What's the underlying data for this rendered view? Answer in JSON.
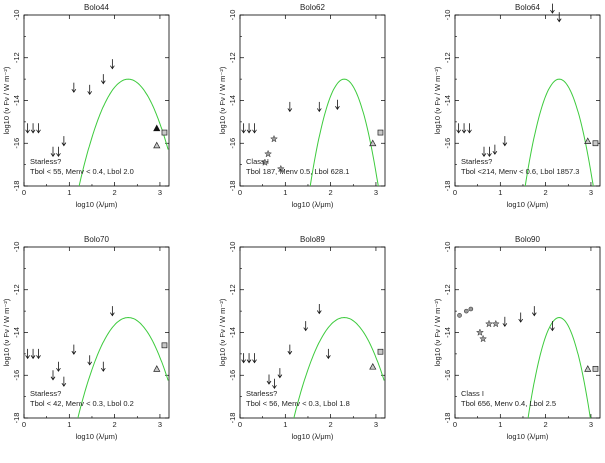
{
  "chart_data": [
    {
      "type": "scatter",
      "title": "Bolo44",
      "xlabel": "log10 (λ/μm)",
      "ylabel": "log10 (ν Fν / W m⁻²)",
      "xlim": [
        0,
        3.2
      ],
      "ylim": [
        -18,
        -10
      ],
      "xticks": [
        "0",
        "1",
        "2",
        "3"
      ],
      "yticks": [
        "-10",
        "-12",
        "-14",
        "-16",
        "-18"
      ],
      "upper_limits": [
        [
          0.08,
          -15.3
        ],
        [
          0.2,
          -15.3
        ],
        [
          0.32,
          -15.3
        ],
        [
          0.64,
          -16.4
        ],
        [
          0.76,
          -16.4
        ],
        [
          0.88,
          -15.9
        ],
        [
          1.1,
          -13.4
        ],
        [
          1.45,
          -13.5
        ],
        [
          1.95,
          -12.3
        ],
        [
          1.75,
          -13.0
        ]
      ],
      "triangles": [
        [
          2.93,
          -16.1
        ]
      ],
      "filled_triangles": [
        [
          2.93,
          -15.3
        ]
      ],
      "squares": [
        [
          3.1,
          -15.5
        ]
      ],
      "stars": [],
      "circles": [],
      "curve": {
        "peak_x": 2.3,
        "peak_y": -13.0,
        "sigma": 0.52
      },
      "annotation_lines": [
        "Starless?",
        "Tbol < 55, Menv < 0.4, Lbol 2.0"
      ]
    },
    {
      "type": "scatter",
      "title": "Bolo62",
      "xlabel": "log10 (λ/μm)",
      "ylabel": "log10 (ν Fν / W m⁻²)",
      "xlim": [
        0,
        3.2
      ],
      "ylim": [
        -18,
        -10
      ],
      "xticks": [
        "0",
        "1",
        "2",
        "3"
      ],
      "yticks": [
        "-10",
        "-12",
        "-14",
        "-16",
        "-18"
      ],
      "upper_limits": [
        [
          0.08,
          -15.3
        ],
        [
          0.2,
          -15.3
        ],
        [
          0.32,
          -15.3
        ],
        [
          1.1,
          -14.3
        ],
        [
          1.75,
          -14.3
        ],
        [
          2.15,
          -14.2
        ]
      ],
      "triangles": [
        [
          2.93,
          -16.0
        ]
      ],
      "filled_triangles": [],
      "squares": [
        [
          3.1,
          -15.5
        ]
      ],
      "stars": [
        [
          0.55,
          -16.9
        ],
        [
          0.62,
          -16.5
        ],
        [
          0.75,
          -15.8
        ],
        [
          0.9,
          -17.2
        ]
      ],
      "circles": [],
      "curve": {
        "peak_x": 2.3,
        "peak_y": -13.0,
        "sigma": 0.36
      },
      "annotation_lines": [
        "Class I",
        "Tbol 187, Menv 0.5, Lbol 628.1"
      ]
    },
    {
      "type": "scatter",
      "title": "Bolo64",
      "xlabel": "log10 (λ/μm)",
      "ylabel": "log10 (ν Fν / W m⁻²)",
      "xlim": [
        0,
        3.2
      ],
      "ylim": [
        -18,
        -10
      ],
      "xticks": [
        "0",
        "1",
        "2",
        "3"
      ],
      "yticks": [
        "-10",
        "-12",
        "-14",
        "-16",
        "-18"
      ],
      "upper_limits": [
        [
          0.08,
          -15.3
        ],
        [
          0.2,
          -15.3
        ],
        [
          0.32,
          -15.3
        ],
        [
          0.64,
          -16.4
        ],
        [
          0.76,
          -16.4
        ],
        [
          0.88,
          -16.3
        ],
        [
          1.1,
          -15.9
        ],
        [
          2.15,
          -9.7
        ],
        [
          2.3,
          -10.1
        ]
      ],
      "triangles": [
        [
          2.93,
          -15.9
        ]
      ],
      "filled_triangles": [],
      "squares": [
        [
          3.1,
          -16.0
        ]
      ],
      "stars": [],
      "circles": [],
      "curve": {
        "peak_x": 2.3,
        "peak_y": -13.0,
        "sigma": 0.36
      },
      "annotation_lines": [
        "Starless?",
        "Tbol <214, Menv < 0.6, Lbol 1857.3"
      ]
    },
    {
      "type": "scatter",
      "title": "Bolo70",
      "xlabel": "log10 (λ/μm)",
      "ylabel": "log10 (ν Fν / W m⁻²)",
      "xlim": [
        0,
        3.2
      ],
      "ylim": [
        -18,
        -10
      ],
      "xticks": [
        "0",
        "1",
        "2",
        "3"
      ],
      "yticks": [
        "-10",
        "-12",
        "-14",
        "-16",
        "-18"
      ],
      "upper_limits": [
        [
          0.08,
          -15.0
        ],
        [
          0.2,
          -15.0
        ],
        [
          0.32,
          -15.0
        ],
        [
          0.64,
          -16.0
        ],
        [
          0.76,
          -15.6
        ],
        [
          0.88,
          -16.3
        ],
        [
          1.1,
          -14.8
        ],
        [
          1.45,
          -15.3
        ],
        [
          1.75,
          -15.6
        ],
        [
          1.95,
          -13.0
        ]
      ],
      "triangles": [
        [
          2.93,
          -15.7
        ]
      ],
      "filled_triangles": [],
      "squares": [
        [
          3.1,
          -14.6
        ]
      ],
      "stars": [],
      "circles": [],
      "curve": {
        "peak_x": 2.3,
        "peak_y": -13.3,
        "sigma": 0.55
      },
      "annotation_lines": [
        "Starless?",
        "Tbol < 42, Menv < 0.3, Lbol 0.2"
      ]
    },
    {
      "type": "scatter",
      "title": "Bolo89",
      "xlabel": "log10 (λ/μm)",
      "ylabel": "log10 (ν Fν / W m⁻²)",
      "xlim": [
        0,
        3.2
      ],
      "ylim": [
        -18,
        -10
      ],
      "xticks": [
        "0",
        "1",
        "2",
        "3"
      ],
      "yticks": [
        "-10",
        "-12",
        "-14",
        "-16",
        "-18"
      ],
      "upper_limits": [
        [
          0.08,
          -15.2
        ],
        [
          0.2,
          -15.2
        ],
        [
          0.32,
          -15.2
        ],
        [
          0.64,
          -16.2
        ],
        [
          0.76,
          -16.4
        ],
        [
          0.88,
          -15.9
        ],
        [
          1.1,
          -14.8
        ],
        [
          1.45,
          -13.7
        ],
        [
          1.75,
          -12.9
        ],
        [
          1.95,
          -15.0
        ]
      ],
      "triangles": [
        [
          2.93,
          -15.6
        ]
      ],
      "filled_triangles": [],
      "squares": [
        [
          3.1,
          -14.9
        ]
      ],
      "stars": [],
      "circles": [],
      "curve": {
        "peak_x": 2.3,
        "peak_y": -13.3,
        "sigma": 0.55
      },
      "annotation_lines": [
        "Starless?",
        "Tbol < 56, Menv < 0.3, Lbol 1.8"
      ]
    },
    {
      "type": "scatter",
      "title": "Bolo90",
      "xlabel": "log10 (λ/μm)",
      "ylabel": "log10 (ν Fν / W m⁻²)",
      "xlim": [
        0,
        3.2
      ],
      "ylim": [
        -18,
        -10
      ],
      "xticks": [
        "0",
        "1",
        "2",
        "3"
      ],
      "yticks": [
        "-10",
        "-12",
        "-14",
        "-16",
        "-18"
      ],
      "upper_limits": [
        [
          1.1,
          -13.5
        ],
        [
          1.45,
          -13.3
        ],
        [
          1.75,
          -13.0
        ],
        [
          2.15,
          -13.7
        ]
      ],
      "triangles": [
        [
          2.93,
          -15.7
        ]
      ],
      "filled_triangles": [],
      "squares": [
        [
          3.1,
          -15.7
        ]
      ],
      "stars": [
        [
          0.55,
          -14.0
        ],
        [
          0.62,
          -14.3
        ],
        [
          0.75,
          -13.6
        ],
        [
          0.9,
          -13.6
        ]
      ],
      "circles": [
        [
          0.1,
          -13.2
        ],
        [
          0.25,
          -13.0
        ],
        [
          0.35,
          -12.9
        ]
      ],
      "curve": {
        "peak_x": 2.3,
        "peak_y": -13.3,
        "sigma": 0.34
      },
      "annotation_lines": [
        "Class I",
        "Tbol 656, Menv 0.4, Lbol 2.5"
      ]
    }
  ]
}
